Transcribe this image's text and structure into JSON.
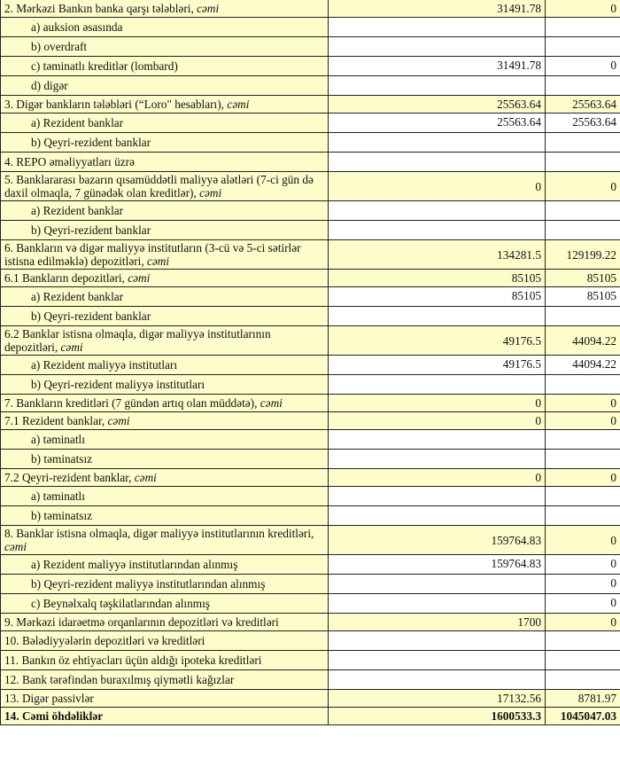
{
  "colors": {
    "highlight": "#fdfccb",
    "border": "#222222"
  },
  "rows": [
    {
      "label": "2. Mərkəzi Bankın banka qarşı tələbləri, ",
      "suffix": "cəmi",
      "v1": "31491.78",
      "v2": "0",
      "hl": true
    },
    {
      "label": "a) auksion əsasında",
      "sub": true
    },
    {
      "label": "b) overdraft",
      "sub": true
    },
    {
      "label": "c) təminatlı kreditlər (lombard)",
      "sub": true,
      "v1": "31491.78",
      "v2": "0"
    },
    {
      "label": "d) digər",
      "sub": true
    },
    {
      "label": "3. Digər bankların tələbləri (“Loro\" hesabları), ",
      "suffix": "cəmi",
      "v1": "25563.64",
      "v2": "25563.64",
      "hl": true
    },
    {
      "label": "a) Rezident banklar",
      "sub": true,
      "v1": "25563.64",
      "v2": "25563.64"
    },
    {
      "label": "b) Qeyri-rezident banklar",
      "sub": true
    },
    {
      "label": "4. REPO əməliyyatları  üzrə"
    },
    {
      "label": "5. Banklararası bazarın qısamüddətli maliyyə alətləri (7-ci gün də daxil olmaqla, 7 günədək olan kreditlər), ",
      "suffix": "cəmi",
      "v1": "0",
      "v2": "0",
      "hl": true,
      "double": true
    },
    {
      "label": "a) Rezident banklar",
      "sub": true
    },
    {
      "label": "b) Qeyri-rezident banklar",
      "sub": true
    },
    {
      "label": "6. Bankların və digər maliyyə institutların (3-cü və 5-ci sətirlər istisna edilməklə) depozitləri, ",
      "suffix": "cəmi",
      "v1": "134281.5",
      "v2": "129199.22",
      "hl": true,
      "double": true
    },
    {
      "label": "6.1  Bankların depozitləri, ",
      "suffix": "cəmi",
      "v1": "85105",
      "v2": "85105",
      "hl": true
    },
    {
      "label": "a) Rezident banklar",
      "sub": true,
      "v1": "85105",
      "v2": "85105"
    },
    {
      "label": "b) Qeyri-rezident banklar",
      "sub": true
    },
    {
      "label": "6.2 Banklar istisna olmaqla, digər maliyyə institutlarının depozitləri, ",
      "suffix": "cəmi",
      "v1": "49176.5",
      "v2": "44094.22",
      "hl": true,
      "double": true
    },
    {
      "label": "a) Rezident maliyyə institutları",
      "sub": true,
      "v1": "49176.5",
      "v2": "44094.22"
    },
    {
      "label": "b) Qeyri-rezident maliyyə institutları",
      "sub": true
    },
    {
      "label": "7. Bankların kreditləri (7 gündən artıq olan müddətə), ",
      "suffix": "cəmi",
      "v1": "0",
      "v2": "0",
      "hl": true
    },
    {
      "label": "7.1 Rezident banklar, ",
      "suffix": "cəmi",
      "v1": "0",
      "v2": "0",
      "hl": true
    },
    {
      "label": "a) təminatlı",
      "sub": true
    },
    {
      "label": "b) təminatsız",
      "sub": true
    },
    {
      "label": "7.2 Qeyri-rezident banklar, ",
      "suffix": "cəmi",
      "v1": "0",
      "v2": "0",
      "hl": true
    },
    {
      "label": "a) təminatlı",
      "sub": true
    },
    {
      "label": "b) təminatsız",
      "sub": true
    },
    {
      "label": "8. Banklar istisna olmaqla, digər maliyyə institutlarının kreditləri, ",
      "suffix": "cəmi",
      "v1": "159764.83",
      "v2": "0",
      "hl": true,
      "double": true
    },
    {
      "label": "a) Rezident maliyyə institutlarından alınmış",
      "sub": true,
      "v1": "159764.83",
      "v2": "0"
    },
    {
      "label": "b) Qeyri-rezident maliyyə institutlarından alınmış",
      "sub": true,
      "v2": "0"
    },
    {
      "label": "c) Beynəlxalq təşkilatlarından alınmış",
      "sub": true,
      "v2": "0"
    },
    {
      "label": "9. Mərkəzi idarəetmə orqanlarının depozitləri və kreditləri",
      "v1": "1700",
      "v2": "0",
      "hl": true
    },
    {
      "label": "10. Bələdiyyələrin depozitləri və kreditləri"
    },
    {
      "label": "11. Bankın öz ehtiyacları üçün aldığı ipoteka kreditləri"
    },
    {
      "label": "12. Bank tərəfindən buraxılmış qiymətli kağızlar"
    },
    {
      "label": "13. Digər passivlər",
      "v1": "17132.56",
      "v2": "8781.97",
      "hl": true
    },
    {
      "label": "14. Cəmi öhdəliklər",
      "v1": "1600533.3",
      "v2": "1045047.03",
      "hl": true,
      "bold": true
    }
  ]
}
